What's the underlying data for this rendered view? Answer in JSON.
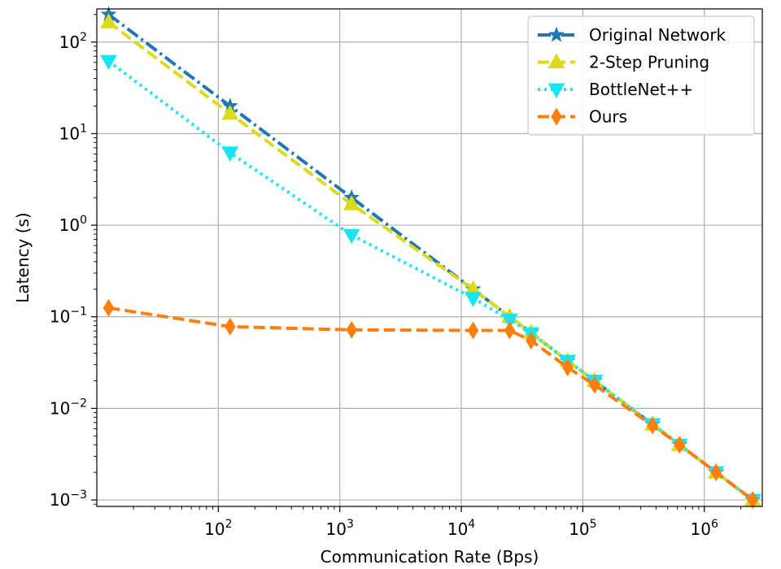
{
  "chart_data": {
    "type": "line",
    "xlabel": "Communication Rate (Bps)",
    "ylabel": "Latency (s)",
    "xscale": "log",
    "yscale": "log",
    "xlim": [
      10,
      3000000
    ],
    "ylim": [
      0.00085,
      230
    ],
    "grid": true,
    "legend_position": "top-right",
    "x_ticks": [
      {
        "value": 100,
        "base": "10",
        "exp": "2"
      },
      {
        "value": 1000,
        "base": "10",
        "exp": "3"
      },
      {
        "value": 10000,
        "base": "10",
        "exp": "4"
      },
      {
        "value": 100000,
        "base": "10",
        "exp": "5"
      },
      {
        "value": 1000000,
        "base": "10",
        "exp": "6"
      }
    ],
    "y_ticks": [
      {
        "value": 0.001,
        "base": "10",
        "exp": "−3"
      },
      {
        "value": 0.01,
        "base": "10",
        "exp": "−2"
      },
      {
        "value": 0.1,
        "base": "10",
        "exp": "−1"
      },
      {
        "value": 1,
        "base": "10",
        "exp": "0"
      },
      {
        "value": 10,
        "base": "10",
        "exp": "1"
      },
      {
        "value": 100,
        "base": "10",
        "exp": "2"
      }
    ],
    "series": [
      {
        "name": "Original Network",
        "color": "#1f77b4",
        "dash": "dashdot",
        "marker": "star",
        "points": [
          [
            12.5,
            200
          ],
          [
            125,
            20
          ],
          [
            1250,
            2.0
          ],
          [
            12500,
            0.2
          ],
          [
            25000,
            0.1
          ],
          [
            37500,
            0.067
          ],
          [
            75000,
            0.033
          ],
          [
            125000,
            0.02
          ],
          [
            375000,
            0.0067
          ],
          [
            625000,
            0.004
          ],
          [
            1250000,
            0.002
          ],
          [
            2500000,
            0.001
          ]
        ]
      },
      {
        "name": "2-Step Pruning",
        "color": "#dbdb1c",
        "dash": "dashed",
        "marker": "triangle-up",
        "points": [
          [
            12.5,
            165
          ],
          [
            125,
            16.5
          ],
          [
            1250,
            1.7
          ],
          [
            12500,
            0.2
          ],
          [
            25000,
            0.1
          ],
          [
            37500,
            0.067
          ],
          [
            75000,
            0.033
          ],
          [
            125000,
            0.02
          ],
          [
            375000,
            0.0067
          ],
          [
            625000,
            0.004
          ],
          [
            1250000,
            0.002
          ],
          [
            2500000,
            0.001
          ]
        ]
      },
      {
        "name": "BottleNet++",
        "color": "#17e6f2",
        "dash": "dotted",
        "marker": "triangle-down",
        "points": [
          [
            12.5,
            62
          ],
          [
            125,
            6.2
          ],
          [
            1250,
            0.78
          ],
          [
            12500,
            0.16
          ],
          [
            25000,
            0.093
          ],
          [
            37500,
            0.066
          ],
          [
            75000,
            0.033
          ],
          [
            125000,
            0.02
          ],
          [
            375000,
            0.0067
          ],
          [
            625000,
            0.004
          ],
          [
            1250000,
            0.002
          ],
          [
            2500000,
            0.001
          ]
        ]
      },
      {
        "name": "Ours",
        "color": "#ff7f0e",
        "dash": "dashed",
        "marker": "diamond",
        "points": [
          [
            12.5,
            0.125
          ],
          [
            125,
            0.078
          ],
          [
            1250,
            0.072
          ],
          [
            12500,
            0.071
          ],
          [
            25000,
            0.071
          ],
          [
            37500,
            0.055
          ],
          [
            75000,
            0.028
          ],
          [
            125000,
            0.018
          ],
          [
            375000,
            0.0065
          ],
          [
            625000,
            0.004
          ],
          [
            1250000,
            0.002
          ],
          [
            2500000,
            0.001
          ]
        ]
      }
    ]
  }
}
